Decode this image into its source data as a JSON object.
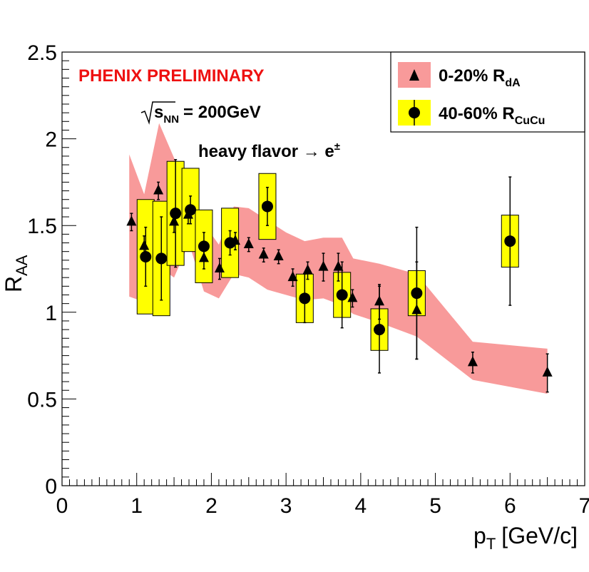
{
  "chart_data": {
    "type": "scatter",
    "title": "",
    "xlabel": "p",
    "xlabel_sub": "T",
    "xlabel_unit": "[GeV/c]",
    "ylabel": "R",
    "ylabel_sub": "AA",
    "xlim": [
      0,
      7
    ],
    "ylim": [
      0,
      2.5
    ],
    "x_ticks": [
      0,
      1,
      2,
      3,
      4,
      5,
      6,
      7
    ],
    "x_tick_labels": [
      "0",
      "1",
      "2",
      "3",
      "4",
      "5",
      "6",
      "7"
    ],
    "y_ticks": [
      0,
      0.5,
      1,
      1.5,
      2,
      2.5
    ],
    "y_tick_labels": [
      "0",
      "0.5",
      "1",
      "1.5",
      "2",
      "2.5"
    ],
    "annotations": {
      "preliminary": "PHENIX PRELIMINARY",
      "sqrt_s_main": "s",
      "sqrt_s_sub": "NN",
      "sqrt_s_value": "= 200GeV",
      "process": "heavy flavor → e",
      "process_sup": "±"
    },
    "legend": {
      "position": "top-right",
      "entries": [
        {
          "label": "0-20% R",
          "label_sub": "dA",
          "marker": "triangle",
          "fill": "#f89a9a"
        },
        {
          "label": "40-60% R",
          "label_sub": "CuCu",
          "marker": "circle",
          "fill": "#ffff00"
        }
      ]
    },
    "colors": {
      "band": "#f89a9a",
      "box": "#ffff00",
      "marker": "#000000"
    },
    "series": [
      {
        "name": "0-20% R_dA",
        "marker": "triangle",
        "band_upper": [
          [
            0.9,
            1.91
          ],
          [
            1.1,
            1.68
          ],
          [
            1.3,
            2.09
          ],
          [
            1.5,
            1.89
          ],
          [
            1.7,
            1.69
          ],
          [
            1.9,
            1.51
          ],
          [
            2.1,
            1.39
          ],
          [
            2.3,
            1.61
          ],
          [
            2.5,
            1.6
          ],
          [
            2.75,
            1.53
          ],
          [
            3.0,
            1.46
          ],
          [
            3.25,
            1.41
          ],
          [
            3.5,
            1.43
          ],
          [
            3.75,
            1.43
          ],
          [
            3.9,
            1.31
          ],
          [
            4.25,
            1.28
          ],
          [
            4.5,
            1.25
          ],
          [
            4.75,
            1.22
          ],
          [
            5.5,
            0.83
          ],
          [
            6.5,
            0.79
          ]
        ],
        "band_lower": [
          [
            0.9,
            1.09
          ],
          [
            1.1,
            1.06
          ],
          [
            1.3,
            1.26
          ],
          [
            1.5,
            1.2
          ],
          [
            1.7,
            1.4
          ],
          [
            1.9,
            1.12
          ],
          [
            2.1,
            1.08
          ],
          [
            2.3,
            1.22
          ],
          [
            2.5,
            1.2
          ],
          [
            2.75,
            1.13
          ],
          [
            3.0,
            1.1
          ],
          [
            3.25,
            1.07
          ],
          [
            3.5,
            1.08
          ],
          [
            3.75,
            1.04
          ],
          [
            3.9,
            0.99
          ],
          [
            4.25,
            0.94
          ],
          [
            4.5,
            0.9
          ],
          [
            4.75,
            0.86
          ],
          [
            5.5,
            0.61
          ],
          [
            6.5,
            0.53
          ]
        ],
        "points": [
          {
            "x": 0.93,
            "y": 1.52,
            "err": 0.05
          },
          {
            "x": 1.1,
            "y": 1.38,
            "err": 0.06
          },
          {
            "x": 1.29,
            "y": 1.7,
            "err": 0.05
          },
          {
            "x": 1.5,
            "y": 1.52,
            "err": 0.06
          },
          {
            "x": 1.69,
            "y": 1.56,
            "err": 0.05
          },
          {
            "x": 1.9,
            "y": 1.31,
            "err": 0.06
          },
          {
            "x": 2.11,
            "y": 1.25,
            "err": 0.06
          },
          {
            "x": 2.32,
            "y": 1.41,
            "err": 0.05
          },
          {
            "x": 2.5,
            "y": 1.39,
            "err": 0.04
          },
          {
            "x": 2.7,
            "y": 1.33,
            "err": 0.04
          },
          {
            "x": 2.9,
            "y": 1.32,
            "err": 0.04
          },
          {
            "x": 3.09,
            "y": 1.2,
            "err": 0.05
          },
          {
            "x": 3.29,
            "y": 1.24,
            "err": 0.05
          },
          {
            "x": 3.5,
            "y": 1.26,
            "err": 0.08
          },
          {
            "x": 3.7,
            "y": 1.26,
            "err": 0.08
          },
          {
            "x": 3.89,
            "y": 1.08,
            "err": 0.05
          },
          {
            "x": 4.25,
            "y": 1.06,
            "err": 0.1
          },
          {
            "x": 4.75,
            "y": 1.01,
            "err": 0.28
          },
          {
            "x": 5.5,
            "y": 0.71,
            "err": 0.06
          },
          {
            "x": 6.5,
            "y": 0.65,
            "err": 0.11
          }
        ]
      },
      {
        "name": "40-60% R_CuCu",
        "marker": "circle",
        "points": [
          {
            "x": 1.12,
            "y": 1.32,
            "err": 0.17,
            "sys": 0.33
          },
          {
            "x": 1.33,
            "y": 1.31,
            "err": 0.24,
            "sys": 0.33
          },
          {
            "x": 1.52,
            "y": 1.57,
            "err": 0.31,
            "sys": 0.3
          },
          {
            "x": 1.72,
            "y": 1.59,
            "err": 0.08,
            "sys": 0.24
          },
          {
            "x": 1.9,
            "y": 1.38,
            "err": 0.08,
            "sys": 0.21
          },
          {
            "x": 2.25,
            "y": 1.4,
            "err": 0.07,
            "sys": 0.2
          },
          {
            "x": 2.75,
            "y": 1.61,
            "err": 0.11,
            "sys": 0.19
          },
          {
            "x": 3.25,
            "y": 1.08,
            "err": 0.14,
            "sys": 0.14
          },
          {
            "x": 3.75,
            "y": 1.1,
            "err": 0.19,
            "sys": 0.13
          },
          {
            "x": 4.25,
            "y": 0.9,
            "err": 0.25,
            "sys": 0.12
          },
          {
            "x": 4.75,
            "y": 1.11,
            "err": 0.38,
            "sys": 0.13
          },
          {
            "x": 6.0,
            "y": 1.41,
            "err": 0.37,
            "sys": 0.15
          }
        ]
      }
    ]
  }
}
